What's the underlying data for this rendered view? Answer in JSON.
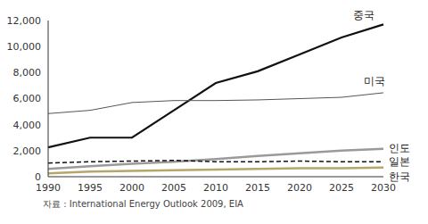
{
  "chart_data": {
    "type": "line",
    "source": "자료 : International Energy Outlook 2009, EIA",
    "categories": [
      "1990",
      "1995",
      "2000",
      "2005",
      "2010",
      "2015",
      "2020",
      "2025",
      "2030"
    ],
    "series": [
      {
        "name": "중국",
        "color": "#111111",
        "line_style": "solid",
        "values": [
          2250,
          3000,
          3000,
          5100,
          7200,
          8100,
          9400,
          10700,
          11700
        ]
      },
      {
        "name": "미국",
        "color": "#555555",
        "line_style": "solid",
        "values": [
          4850,
          5100,
          5700,
          5850,
          5850,
          5900,
          6000,
          6100,
          6450
        ]
      },
      {
        "name": "인도",
        "color": "#9a9a9a",
        "line_style": "solid",
        "values": [
          600,
          800,
          1000,
          1150,
          1350,
          1600,
          1800,
          2000,
          2150
        ]
      },
      {
        "name": "일본",
        "color": "#111111",
        "line_style": "dashed",
        "values": [
          1050,
          1150,
          1200,
          1250,
          1150,
          1150,
          1200,
          1150,
          1150
        ]
      },
      {
        "name": "한국",
        "color": "#b5a66a",
        "line_style": "solid",
        "values": [
          250,
          400,
          450,
          500,
          550,
          600,
          650,
          650,
          700
        ]
      }
    ],
    "ylim": [
      0,
      12000
    ],
    "yticks": [
      0,
      {
        "value": 2000,
        "label": "2,000"
      },
      {
        "value": 4000,
        "label": "4,000"
      },
      {
        "value": 6000,
        "label": "6,000"
      },
      {
        "value": 8000,
        "label": "8,000"
      },
      {
        "value": 10000,
        "label": "10,000"
      },
      {
        "value": 12000,
        "label": "12,000"
      }
    ],
    "grid": false,
    "legend": "none"
  }
}
